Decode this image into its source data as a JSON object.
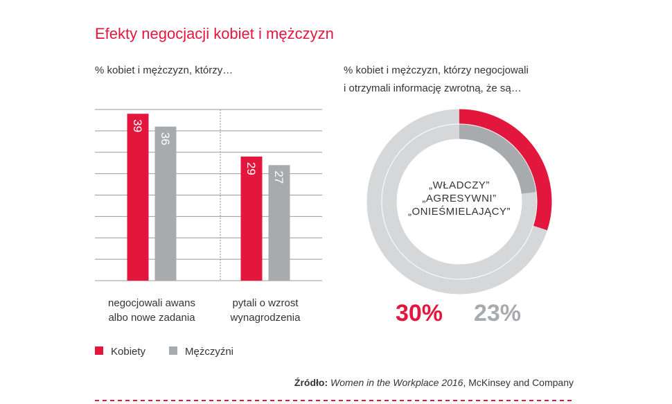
{
  "title": "Efekty negocjacji kobiet i mężczyzn",
  "chart_data": [
    {
      "type": "bar",
      "subtitle": "% kobiet i mężczyzn, którzy…",
      "categories": [
        "negocjowali awans\nalbo nowe zadania",
        "pytali o wzrost\nwynagrodzenia"
      ],
      "series": [
        {
          "name": "Kobiety",
          "color": "#e3173e",
          "values": [
            39,
            29
          ]
        },
        {
          "name": "Mężczyźni",
          "color": "#a7abae",
          "values": [
            36,
            27
          ]
        }
      ],
      "ylim": [
        0,
        40
      ],
      "yticks": [
        0,
        5,
        10,
        15,
        20,
        25,
        30,
        35,
        40
      ],
      "ytick_labels": false,
      "grid": true,
      "legend": "bottom-left"
    },
    {
      "type": "donut",
      "subtitle": "% kobiet i mężczyzn, którzy negocjowali\ni otrzymali informację zwrotną, że są…",
      "center_label": "„WŁADCZY”\n„AGRESYWNI”\n„ONIEŚMIELAJĄCY”",
      "track_color": "#d5d7d9",
      "series": [
        {
          "color": "#e3173e",
          "values": [
            30
          ],
          "value_labels": [
            "30%"
          ]
        },
        {
          "color": "#a7abae",
          "values": [
            23
          ],
          "value_labels": [
            "23%"
          ]
        }
      ]
    }
  ],
  "source": {
    "label": "Źródło:",
    "title": "Women in the Workplace 2016",
    "rest": ", McKinsey and Company"
  }
}
